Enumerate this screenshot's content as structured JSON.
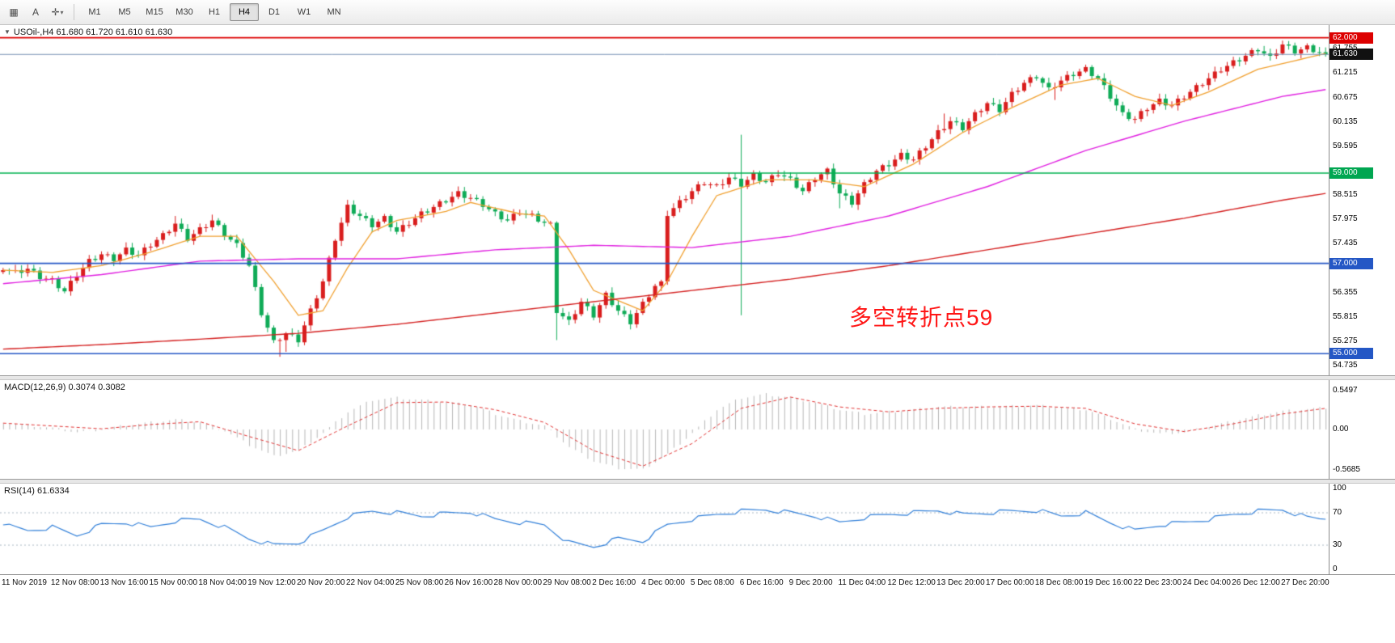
{
  "toolbar": {
    "icons": [
      {
        "name": "grid-icon",
        "glyph": "▦",
        "dropdown": ""
      },
      {
        "name": "text-tool-icon",
        "glyph": "A",
        "dropdown": ""
      },
      {
        "name": "crosshair-tool-icon",
        "glyph": "✛",
        "dropdown": "▾"
      }
    ],
    "timeframes": [
      {
        "label": "M1",
        "active": false
      },
      {
        "label": "M5",
        "active": false
      },
      {
        "label": "M15",
        "active": false
      },
      {
        "label": "M30",
        "active": false
      },
      {
        "label": "H1",
        "active": false
      },
      {
        "label": "H4",
        "active": true
      },
      {
        "label": "D1",
        "active": false
      },
      {
        "label": "W1",
        "active": false
      },
      {
        "label": "MN",
        "active": false
      }
    ]
  },
  "main_chart": {
    "collapse_glyph": "▼",
    "symbol_label": "USOil-,H4 61.680 61.720 61.610 61.630",
    "annotation": "多空转折点59",
    "price_max": 62.28,
    "price_min": 54.52,
    "up_color": "#d91e1e",
    "down_color": "#0fab57",
    "ma_colors": {
      "fast": "#f0a030",
      "mid": "#e020e0",
      "slow": "#d42020"
    },
    "hlines": [
      {
        "price": 62.0,
        "label": "62.000",
        "color": "#dd0000",
        "tag": "#dd0000",
        "width": 1.6
      },
      {
        "price": 61.63,
        "label": "61.630",
        "color": "#7691b4",
        "tag": "#111111",
        "width": 1
      },
      {
        "price": 59.0,
        "label": "59.000",
        "color": "#00b050",
        "tag": "#00a651",
        "width": 1.6
      },
      {
        "price": 57.0,
        "label": "57.000",
        "color": "#2457c5",
        "tag": "#2457c5",
        "width": 1.6
      },
      {
        "price": 55.0,
        "label": "55.000",
        "color": "#2457c5",
        "tag": "#2457c5",
        "width": 1.6
      }
    ],
    "axis_ticks": [
      "61.755",
      "61.215",
      "60.675",
      "60.135",
      "59.595",
      "58.515",
      "57.975",
      "57.435",
      "56.895",
      "56.355",
      "55.815",
      "55.275",
      "54.735"
    ]
  },
  "chart_data": {
    "type": "candlestick",
    "symbol": "USOil",
    "timeframe": "H4",
    "bars_total": 216,
    "ohlc_current": {
      "open": 61.68,
      "high": 61.72,
      "low": 61.61,
      "close": 61.63
    },
    "close_keyframes": [
      [
        0,
        56.9
      ],
      [
        2,
        56.8
      ],
      [
        4,
        56.88
      ],
      [
        6,
        56.7
      ],
      [
        8,
        56.62
      ],
      [
        10,
        56.38
      ],
      [
        12,
        56.75
      ],
      [
        14,
        57.05
      ],
      [
        16,
        57.2
      ],
      [
        18,
        57.1
      ],
      [
        20,
        57.3
      ],
      [
        22,
        57.18
      ],
      [
        24,
        57.42
      ],
      [
        26,
        57.62
      ],
      [
        28,
        57.88
      ],
      [
        30,
        57.55
      ],
      [
        32,
        57.75
      ],
      [
        34,
        57.95
      ],
      [
        36,
        57.65
      ],
      [
        38,
        57.4
      ],
      [
        40,
        56.95
      ],
      [
        42,
        55.9
      ],
      [
        44,
        55.25
      ],
      [
        46,
        55.45
      ],
      [
        48,
        55.3
      ],
      [
        50,
        55.95
      ],
      [
        52,
        56.6
      ],
      [
        54,
        57.55
      ],
      [
        56,
        58.25
      ],
      [
        58,
        58.05
      ],
      [
        60,
        57.85
      ],
      [
        62,
        58.0
      ],
      [
        64,
        57.7
      ],
      [
        66,
        57.9
      ],
      [
        68,
        58.1
      ],
      [
        70,
        58.25
      ],
      [
        72,
        58.4
      ],
      [
        74,
        58.55
      ],
      [
        76,
        58.45
      ],
      [
        78,
        58.3
      ],
      [
        80,
        58.1
      ],
      [
        82,
        57.95
      ],
      [
        84,
        58.15
      ],
      [
        86,
        58.05
      ],
      [
        88,
        57.9
      ],
      [
        89,
        57.85
      ],
      [
        90,
        55.95
      ],
      [
        92,
        55.7
      ],
      [
        94,
        56.15
      ],
      [
        96,
        55.85
      ],
      [
        98,
        56.3
      ],
      [
        100,
        55.95
      ],
      [
        102,
        55.7
      ],
      [
        104,
        56.1
      ],
      [
        106,
        56.5
      ],
      [
        107,
        56.55
      ],
      [
        108,
        58.1
      ],
      [
        110,
        58.35
      ],
      [
        112,
        58.6
      ],
      [
        114,
        58.8
      ],
      [
        116,
        58.7
      ],
      [
        118,
        58.9
      ],
      [
        120,
        58.75
      ],
      [
        122,
        58.95
      ],
      [
        124,
        58.8
      ],
      [
        126,
        59.0
      ],
      [
        128,
        58.85
      ],
      [
        130,
        58.6
      ],
      [
        132,
        58.9
      ],
      [
        134,
        59.05
      ],
      [
        136,
        58.55
      ],
      [
        138,
        58.35
      ],
      [
        140,
        58.75
      ],
      [
        142,
        59.05
      ],
      [
        144,
        59.2
      ],
      [
        146,
        59.4
      ],
      [
        148,
        59.3
      ],
      [
        150,
        59.6
      ],
      [
        152,
        59.9
      ],
      [
        154,
        60.15
      ],
      [
        156,
        60.0
      ],
      [
        158,
        60.3
      ],
      [
        160,
        60.55
      ],
      [
        162,
        60.4
      ],
      [
        164,
        60.75
      ],
      [
        166,
        61.0
      ],
      [
        168,
        61.15
      ],
      [
        170,
        60.85
      ],
      [
        172,
        61.05
      ],
      [
        174,
        61.2
      ],
      [
        176,
        61.3
      ],
      [
        178,
        61.1
      ],
      [
        180,
        60.7
      ],
      [
        182,
        60.3
      ],
      [
        184,
        60.2
      ],
      [
        186,
        60.45
      ],
      [
        188,
        60.6
      ],
      [
        190,
        60.5
      ],
      [
        192,
        60.7
      ],
      [
        194,
        60.9
      ],
      [
        196,
        61.1
      ],
      [
        198,
        61.3
      ],
      [
        200,
        61.45
      ],
      [
        202,
        61.6
      ],
      [
        204,
        61.75
      ],
      [
        206,
        61.55
      ],
      [
        208,
        61.85
      ],
      [
        210,
        61.7
      ],
      [
        212,
        61.78
      ],
      [
        215,
        61.63
      ]
    ],
    "spikes": [
      {
        "i": 28,
        "h": 58.05
      },
      {
        "i": 34,
        "h": 58.08
      },
      {
        "i": 45,
        "l": 54.93
      },
      {
        "i": 46,
        "l": 55.04
      },
      {
        "i": 90,
        "l": 55.3
      },
      {
        "i": 120,
        "h": 59.85,
        "l": 55.85
      },
      {
        "i": 136,
        "l": 58.22
      },
      {
        "i": 153,
        "h": 60.32
      },
      {
        "i": 171,
        "l": 60.62
      }
    ],
    "ma_fast_keyframes": [
      [
        0,
        56.85
      ],
      [
        8,
        56.8
      ],
      [
        16,
        56.95
      ],
      [
        24,
        57.25
      ],
      [
        32,
        57.6
      ],
      [
        38,
        57.6
      ],
      [
        44,
        56.6
      ],
      [
        48,
        55.85
      ],
      [
        52,
        55.95
      ],
      [
        56,
        56.9
      ],
      [
        60,
        57.7
      ],
      [
        64,
        57.95
      ],
      [
        72,
        58.15
      ],
      [
        76,
        58.35
      ],
      [
        84,
        58.1
      ],
      [
        88,
        58.05
      ],
      [
        92,
        57.3
      ],
      [
        96,
        56.4
      ],
      [
        104,
        55.95
      ],
      [
        108,
        56.6
      ],
      [
        112,
        57.6
      ],
      [
        116,
        58.5
      ],
      [
        124,
        58.85
      ],
      [
        132,
        58.85
      ],
      [
        140,
        58.7
      ],
      [
        148,
        59.2
      ],
      [
        156,
        59.9
      ],
      [
        164,
        60.45
      ],
      [
        172,
        60.95
      ],
      [
        178,
        61.1
      ],
      [
        184,
        60.7
      ],
      [
        190,
        60.5
      ],
      [
        196,
        60.8
      ],
      [
        204,
        61.3
      ],
      [
        215,
        61.65
      ]
    ],
    "ma_mid_keyframes": [
      [
        0,
        56.55
      ],
      [
        16,
        56.75
      ],
      [
        32,
        57.05
      ],
      [
        48,
        57.1
      ],
      [
        64,
        57.1
      ],
      [
        80,
        57.3
      ],
      [
        96,
        57.4
      ],
      [
        112,
        57.35
      ],
      [
        128,
        57.6
      ],
      [
        144,
        58.05
      ],
      [
        160,
        58.7
      ],
      [
        176,
        59.5
      ],
      [
        192,
        60.15
      ],
      [
        208,
        60.7
      ],
      [
        215,
        60.85
      ]
    ],
    "ma_slow_keyframes": [
      [
        0,
        55.1
      ],
      [
        16,
        55.2
      ],
      [
        32,
        55.32
      ],
      [
        48,
        55.45
      ],
      [
        64,
        55.65
      ],
      [
        80,
        55.9
      ],
      [
        96,
        56.15
      ],
      [
        112,
        56.4
      ],
      [
        128,
        56.65
      ],
      [
        144,
        56.95
      ],
      [
        160,
        57.3
      ],
      [
        176,
        57.65
      ],
      [
        192,
        58.0
      ],
      [
        208,
        58.4
      ],
      [
        215,
        58.55
      ]
    ],
    "macd_hist_keyframes": [
      [
        0,
        0.1
      ],
      [
        4,
        0.06
      ],
      [
        8,
        0.02
      ],
      [
        12,
        -0.04
      ],
      [
        16,
        0.0
      ],
      [
        20,
        0.06
      ],
      [
        24,
        0.1
      ],
      [
        28,
        0.14
      ],
      [
        32,
        0.1
      ],
      [
        36,
        -0.02
      ],
      [
        40,
        -0.22
      ],
      [
        44,
        -0.38
      ],
      [
        48,
        -0.3
      ],
      [
        52,
        -0.05
      ],
      [
        56,
        0.25
      ],
      [
        60,
        0.42
      ],
      [
        64,
        0.45
      ],
      [
        70,
        0.4
      ],
      [
        76,
        0.35
      ],
      [
        80,
        0.22
      ],
      [
        84,
        0.12
      ],
      [
        88,
        0.05
      ],
      [
        92,
        -0.25
      ],
      [
        96,
        -0.45
      ],
      [
        100,
        -0.55
      ],
      [
        104,
        -0.57
      ],
      [
        108,
        -0.35
      ],
      [
        112,
        -0.05
      ],
      [
        116,
        0.28
      ],
      [
        120,
        0.45
      ],
      [
        124,
        0.5
      ],
      [
        128,
        0.45
      ],
      [
        132,
        0.38
      ],
      [
        136,
        0.28
      ],
      [
        140,
        0.22
      ],
      [
        144,
        0.25
      ],
      [
        148,
        0.28
      ],
      [
        152,
        0.32
      ],
      [
        160,
        0.32
      ],
      [
        168,
        0.34
      ],
      [
        176,
        0.28
      ],
      [
        180,
        0.15
      ],
      [
        184,
        0.0
      ],
      [
        188,
        -0.06
      ],
      [
        192,
        -0.04
      ],
      [
        196,
        0.04
      ],
      [
        200,
        0.12
      ],
      [
        204,
        0.2
      ],
      [
        208,
        0.26
      ],
      [
        215,
        0.31
      ]
    ],
    "macd_signal_keyframes": [
      [
        0,
        0.09
      ],
      [
        8,
        0.05
      ],
      [
        16,
        0.01
      ],
      [
        24,
        0.07
      ],
      [
        32,
        0.11
      ],
      [
        40,
        -0.1
      ],
      [
        48,
        -0.3
      ],
      [
        56,
        0.05
      ],
      [
        64,
        0.38
      ],
      [
        72,
        0.39
      ],
      [
        80,
        0.28
      ],
      [
        88,
        0.1
      ],
      [
        96,
        -0.3
      ],
      [
        104,
        -0.52
      ],
      [
        112,
        -0.2
      ],
      [
        120,
        0.3
      ],
      [
        128,
        0.46
      ],
      [
        136,
        0.32
      ],
      [
        144,
        0.25
      ],
      [
        152,
        0.3
      ],
      [
        160,
        0.32
      ],
      [
        168,
        0.33
      ],
      [
        176,
        0.3
      ],
      [
        184,
        0.08
      ],
      [
        192,
        -0.03
      ],
      [
        200,
        0.08
      ],
      [
        208,
        0.22
      ],
      [
        215,
        0.3
      ]
    ],
    "rsi_keyframes": [
      [
        0,
        55
      ],
      [
        4,
        48
      ],
      [
        8,
        52
      ],
      [
        12,
        42
      ],
      [
        16,
        55
      ],
      [
        20,
        58
      ],
      [
        24,
        52
      ],
      [
        28,
        60
      ],
      [
        32,
        62
      ],
      [
        36,
        52
      ],
      [
        40,
        38
      ],
      [
        44,
        30
      ],
      [
        48,
        33
      ],
      [
        52,
        48
      ],
      [
        56,
        65
      ],
      [
        60,
        72
      ],
      [
        64,
        70
      ],
      [
        68,
        66
      ],
      [
        72,
        69
      ],
      [
        76,
        71
      ],
      [
        80,
        62
      ],
      [
        84,
        58
      ],
      [
        88,
        55
      ],
      [
        92,
        33
      ],
      [
        96,
        28
      ],
      [
        100,
        38
      ],
      [
        104,
        35
      ],
      [
        108,
        55
      ],
      [
        112,
        62
      ],
      [
        116,
        68
      ],
      [
        120,
        72
      ],
      [
        124,
        74
      ],
      [
        128,
        70
      ],
      [
        132,
        66
      ],
      [
        136,
        58
      ],
      [
        140,
        64
      ],
      [
        144,
        68
      ],
      [
        148,
        70
      ],
      [
        152,
        73
      ],
      [
        156,
        68
      ],
      [
        160,
        70
      ],
      [
        164,
        72
      ],
      [
        168,
        73
      ],
      [
        172,
        66
      ],
      [
        176,
        70
      ],
      [
        180,
        58
      ],
      [
        184,
        48
      ],
      [
        188,
        55
      ],
      [
        192,
        58
      ],
      [
        196,
        62
      ],
      [
        200,
        68
      ],
      [
        204,
        72
      ],
      [
        208,
        74
      ],
      [
        212,
        64
      ],
      [
        215,
        62
      ]
    ]
  },
  "macd": {
    "label": "MACD(12,26,9) 0.3074 0.3082",
    "hist_color": "#b6b6b6",
    "signal_color": "#e03030",
    "range": [
      -0.7,
      0.7
    ],
    "axis": [
      {
        "v": 0.5497,
        "t": "0.5497"
      },
      {
        "v": 0,
        "t": "0.00"
      },
      {
        "v": -0.5685,
        "t": "-0.5685"
      }
    ]
  },
  "rsi": {
    "label": "RSI(14) 61.6334",
    "line_color": "#2f7ed8",
    "level_color": "#a9b6c2",
    "levels": [
      70,
      30
    ],
    "axis": [
      {
        "v": 100,
        "t": "100"
      },
      {
        "v": 70,
        "t": "70"
      },
      {
        "v": 30,
        "t": "30"
      },
      {
        "v": 0,
        "t": "0"
      }
    ]
  },
  "time_axis": {
    "labels": [
      "11 Nov 2019",
      "12 Nov 08:00",
      "13 Nov 16:00",
      "15 Nov 00:00",
      "18 Nov 04:00",
      "19 Nov 12:00",
      "20 Nov 20:00",
      "22 Nov 04:00",
      "25 Nov 08:00",
      "26 Nov 16:00",
      "28 Nov 00:00",
      "29 Nov 08:00",
      "2 Dec 16:00",
      "4 Dec 00:00",
      "5 Dec 08:00",
      "6 Dec 16:00",
      "9 Dec 20:00",
      "11 Dec 04:00",
      "12 Dec 12:00",
      "13 Dec 20:00",
      "17 Dec 00:00",
      "18 Dec 08:00",
      "19 Dec 16:00",
      "22 Dec 23:00",
      "24 Dec 04:00",
      "26 Dec 12:00",
      "27 Dec 20:00"
    ]
  }
}
